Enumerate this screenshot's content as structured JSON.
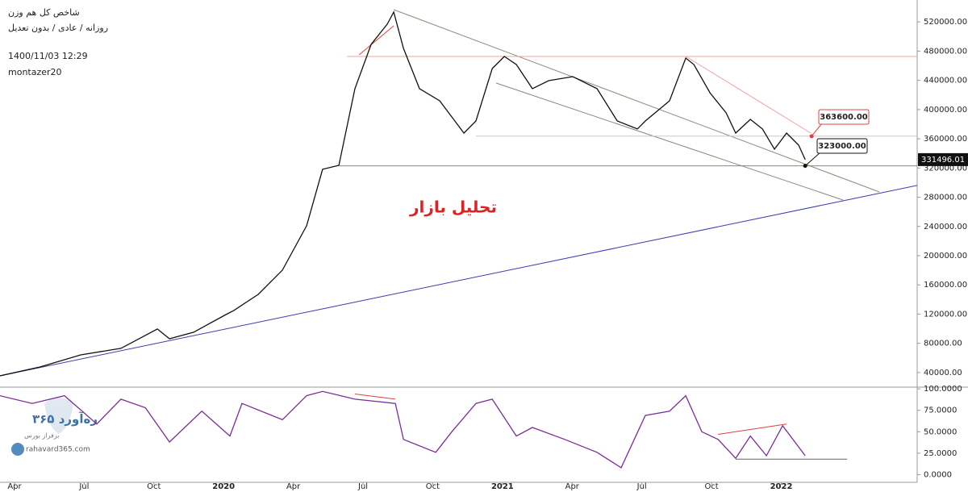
{
  "header": {
    "title": "شاخص کل هم وزن",
    "subtitle": "روزانه / عادی / بدون تعدیل",
    "timestamp": "1400/11/03 12:29",
    "author": "montazer20"
  },
  "annotation": "تحلیل بازار",
  "watermark": {
    "brand": "ره‌آورد ۳۶۵",
    "tagline": "برفراز بورس",
    "url": "rahavard365.com"
  },
  "chart_data": [
    {
      "type": "line",
      "xlim": [
        -0.625,
        38.85
      ],
      "ylim": [
        20000,
        550000
      ],
      "yticks": [
        {
          "value": 40000,
          "label": "40000.00"
        },
        {
          "value": 80000,
          "label": "80000.00"
        },
        {
          "value": 120000,
          "label": "120000.00"
        },
        {
          "value": 160000,
          "label": "160000.00"
        },
        {
          "value": 200000,
          "label": "200000.00"
        },
        {
          "value": 240000,
          "label": "240000.00"
        },
        {
          "value": 280000,
          "label": "280000.00"
        },
        {
          "value": 320000,
          "label": "320000.00"
        },
        {
          "value": 360000,
          "label": "360000.00"
        },
        {
          "value": 400000,
          "label": "400000.00"
        },
        {
          "value": 440000,
          "label": "440000.00"
        },
        {
          "value": 480000,
          "label": "480000.00"
        },
        {
          "value": 520000,
          "label": "520000.00"
        }
      ],
      "x": [
        -0.63,
        1.11,
        2.85,
        4.58,
        6.15,
        6.67,
        7.71,
        9.1,
        9.44,
        10.49,
        11.53,
        12.57,
        13.26,
        13.96,
        14.65,
        15.35,
        16.04,
        16.32,
        16.74,
        17.43,
        18.3,
        18.82,
        19.34,
        19.86,
        20.56,
        21.08,
        21.6,
        22.29,
        22.99,
        24.03,
        25.07,
        25.94,
        26.81,
        27.15,
        28.19,
        28.89,
        29.24,
        29.93,
        30.63,
        31.04,
        31.67,
        32.19,
        32.71,
        33.23,
        33.75,
        34.03
      ],
      "series": [
        {
          "color": "#111111",
          "values": [
            35500,
            47700,
            64200,
            73100,
            99600,
            86300,
            95200,
            119400,
            125000,
            147000,
            180200,
            240900,
            318200,
            323700,
            428600,
            489300,
            516900,
            533400,
            483800,
            428600,
            412000,
            389900,
            367800,
            384400,
            456200,
            472700,
            461700,
            428600,
            439600,
            445100,
            428600,
            384400,
            373400,
            384400,
            412000,
            470500,
            461700,
            423000,
            395400,
            367800,
            386600,
            373400,
            345800,
            367800,
            351300,
            331496.01
          ]
        }
      ],
      "levels": [
        {
          "value": 363600,
          "label": "363600.00",
          "color": "#e04040"
        },
        {
          "value": 323000,
          "label": "323000.00",
          "color": "#111111"
        }
      ],
      "trendlines": [
        {
          "x": [
            16.32,
            37.22
          ],
          "y": [
            536800,
            287200
          ],
          "color": "#8a8a7a"
        },
        {
          "x": [
            20.73,
            35.66
          ],
          "y": [
            436300,
            276200
          ],
          "color": "#8a8a7a"
        },
        {
          "x": [
            -0.63,
            38.85
          ],
          "y": [
            35500,
            296100
          ],
          "color": "#3b3bb0"
        },
        {
          "x": [
            14.83,
            16.32
          ],
          "y": [
            474900,
            514700
          ],
          "color": "#e04040"
        },
        {
          "x": [
            14.31,
            38.85
          ],
          "y": [
            472700,
            472700
          ],
          "color": "#f2a0a0"
        },
        {
          "x": [
            28.89,
            34.27
          ],
          "y": [
            472700,
            367800
          ],
          "color": "#f2a0a0"
        },
        {
          "x": [
            19.86,
            38.85
          ],
          "y": [
            363600,
            363600
          ],
          "color": "#c8c8c8"
        },
        {
          "x": [
            13.96,
            38.85
          ],
          "y": [
            323000,
            323000
          ],
          "color": "#8a8a7a"
        }
      ]
    },
    {
      "type": "line",
      "xlim": [
        -0.625,
        38.85
      ],
      "ylim": [
        -9,
        102
      ],
      "yticks": [
        {
          "value": 0,
          "label": "0.0000"
        },
        {
          "value": 25,
          "label": "25.0000"
        },
        {
          "value": 50,
          "label": "50.0000"
        },
        {
          "value": 75,
          "label": "75.0000"
        },
        {
          "value": 100,
          "label": "100.0000"
        }
      ],
      "xticks": [
        {
          "value": 0,
          "label": "Apr"
        },
        {
          "value": 3,
          "label": "Jul"
        },
        {
          "value": 6,
          "label": "Oct"
        },
        {
          "value": 9,
          "label": "2020"
        },
        {
          "value": 12,
          "label": "Apr"
        },
        {
          "value": 15,
          "label": "Jul"
        },
        {
          "value": 18,
          "label": "Oct"
        },
        {
          "value": 21,
          "label": "2021"
        },
        {
          "value": 24,
          "label": "Apr"
        },
        {
          "value": 27,
          "label": "Jul"
        },
        {
          "value": 30,
          "label": "Oct"
        },
        {
          "value": 33,
          "label": "2022"
        }
      ],
      "x": [
        -0.63,
        0.76,
        2.15,
        3.54,
        4.58,
        5.63,
        6.67,
        8.06,
        9.27,
        9.79,
        11.53,
        12.57,
        13.26,
        14.65,
        16.39,
        16.74,
        18.13,
        18.82,
        19.86,
        20.56,
        21.6,
        22.29,
        23.68,
        25.07,
        26.11,
        27.15,
        28.19,
        28.89,
        29.58,
        30.28,
        31.04,
        31.67,
        32.36,
        33.06,
        34.03
      ],
      "series": [
        {
          "color": "#7b2d9b",
          "values": [
            92,
            83,
            92,
            59,
            88,
            78,
            38,
            74,
            45,
            83,
            64,
            92,
            97,
            88,
            83,
            41,
            26,
            50,
            83,
            88,
            45,
            55,
            41,
            26,
            8,
            69,
            74,
            92,
            50,
            41,
            19,
            45,
            22,
            57,
            22
          ]
        }
      ],
      "trendlines": [
        {
          "x": [
            14.65,
            16.39
          ],
          "y": [
            94,
            88
          ],
          "color": "#e04040"
        },
        {
          "x": [
            30.28,
            33.23
          ],
          "y": [
            47,
            59
          ],
          "color": "#e04040"
        },
        {
          "x": [
            31.04,
            35.84
          ],
          "y": [
            18,
            18
          ],
          "color": "#666666"
        }
      ]
    }
  ]
}
